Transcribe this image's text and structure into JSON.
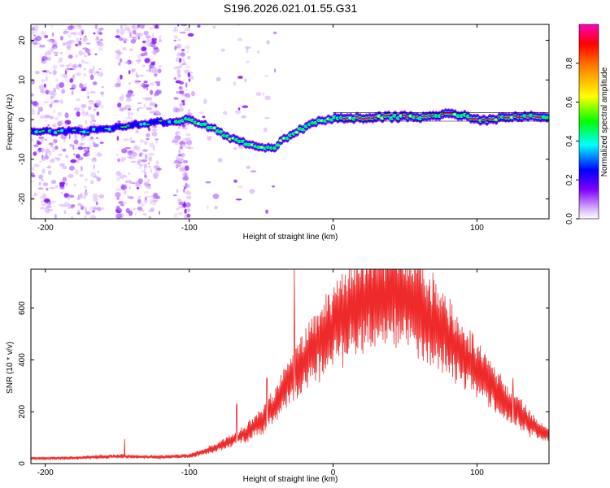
{
  "title": "S196.2026.021.01.55.G31",
  "chart_data": [
    {
      "type": "heatmap",
      "xlabel": "Height of straight line (km)",
      "ylabel": "Frequency (Hz)",
      "xlim": [
        -210,
        150
      ],
      "ylim": [
        -25,
        24
      ],
      "xticks": [
        -200,
        -100,
        0,
        100
      ],
      "xtick_labels": [
        "-200",
        "-100",
        "0",
        "100"
      ],
      "yticks": [
        -20,
        -10,
        0,
        10,
        20
      ],
      "ytick_labels": [
        "-20",
        "-10",
        "0",
        "10",
        "20"
      ],
      "ridge": [
        {
          "x": -205,
          "f": -3
        },
        {
          "x": -190,
          "f": -3
        },
        {
          "x": -175,
          "f": -3
        },
        {
          "x": -160,
          "f": -2.5
        },
        {
          "x": -145,
          "f": -1.5
        },
        {
          "x": -130,
          "f": -1
        },
        {
          "x": -115,
          "f": -0.5
        },
        {
          "x": -100,
          "f": 0
        },
        {
          "x": -90,
          "f": -1
        },
        {
          "x": -80,
          "f": -3
        },
        {
          "x": -70,
          "f": -5
        },
        {
          "x": -60,
          "f": -6
        },
        {
          "x": -50,
          "f": -7
        },
        {
          "x": -40,
          "f": -7.5
        },
        {
          "x": -35,
          "f": -5
        },
        {
          "x": -25,
          "f": -3
        },
        {
          "x": -15,
          "f": -1
        },
        {
          "x": -5,
          "f": 0
        },
        {
          "x": 5,
          "f": 0.5
        },
        {
          "x": 20,
          "f": 0.5
        },
        {
          "x": 40,
          "f": 0.7
        },
        {
          "x": 60,
          "f": 0.7
        },
        {
          "x": 75,
          "f": 1.2
        },
        {
          "x": 85,
          "f": 1.5
        },
        {
          "x": 95,
          "f": 0.5
        },
        {
          "x": 105,
          "f": 0
        },
        {
          "x": 120,
          "f": 0.5
        },
        {
          "x": 135,
          "f": 0.7
        },
        {
          "x": 150,
          "f": 0.7
        }
      ],
      "colorbar": {
        "label": "Normalized spectral amplitude",
        "range": [
          0.0,
          1.0
        ],
        "ticks": [
          0.0,
          0.2,
          0.4,
          0.6,
          0.8
        ],
        "tick_labels": [
          "0.0",
          "0.2",
          "0.4",
          "0.6",
          "0.8"
        ],
        "colors": [
          "#ffffff",
          "#d9b3ff",
          "#8000ff",
          "#0000ff",
          "#00ffff",
          "#00ff00",
          "#ffff00",
          "#ff8000",
          "#ff0000",
          "#ff00c0"
        ]
      }
    },
    {
      "type": "line",
      "color": "#ee2a2a",
      "xlabel": "Height of straight line (km)",
      "ylabel": "SNR (10 * v/v)",
      "xlim": [
        -210,
        150
      ],
      "ylim": [
        0,
        750
      ],
      "xticks": [
        -200,
        -100,
        0,
        100
      ],
      "xtick_labels": [
        "-200",
        "-100",
        "0",
        "100"
      ],
      "yticks": [
        0,
        200,
        400,
        600
      ],
      "ytick_labels": [
        "0",
        "200",
        "400",
        "600"
      ],
      "envelope": [
        {
          "x": -210,
          "y": 20
        },
        {
          "x": -180,
          "y": 22
        },
        {
          "x": -150,
          "y": 28
        },
        {
          "x": -120,
          "y": 25
        },
        {
          "x": -100,
          "y": 30
        },
        {
          "x": -90,
          "y": 45
        },
        {
          "x": -80,
          "y": 65
        },
        {
          "x": -70,
          "y": 90
        },
        {
          "x": -60,
          "y": 120
        },
        {
          "x": -50,
          "y": 160
        },
        {
          "x": -40,
          "y": 230
        },
        {
          "x": -30,
          "y": 320
        },
        {
          "x": -20,
          "y": 400
        },
        {
          "x": -10,
          "y": 470
        },
        {
          "x": 0,
          "y": 530
        },
        {
          "x": 10,
          "y": 580
        },
        {
          "x": 20,
          "y": 615
        },
        {
          "x": 30,
          "y": 640
        },
        {
          "x": 40,
          "y": 650
        },
        {
          "x": 50,
          "y": 640
        },
        {
          "x": 60,
          "y": 600
        },
        {
          "x": 70,
          "y": 550
        },
        {
          "x": 80,
          "y": 490
        },
        {
          "x": 90,
          "y": 420
        },
        {
          "x": 100,
          "y": 360
        },
        {
          "x": 110,
          "y": 300
        },
        {
          "x": 120,
          "y": 240
        },
        {
          "x": 130,
          "y": 190
        },
        {
          "x": 140,
          "y": 140
        },
        {
          "x": 150,
          "y": 110
        }
      ],
      "spikes": [
        {
          "x": -145,
          "y": 95
        },
        {
          "x": -67,
          "y": 230
        },
        {
          "x": -46,
          "y": 330
        },
        {
          "x": -27,
          "y": 750
        },
        {
          "x": -9,
          "y": 570
        },
        {
          "x": 103,
          "y": 410
        },
        {
          "x": 125,
          "y": 330
        }
      ]
    }
  ]
}
